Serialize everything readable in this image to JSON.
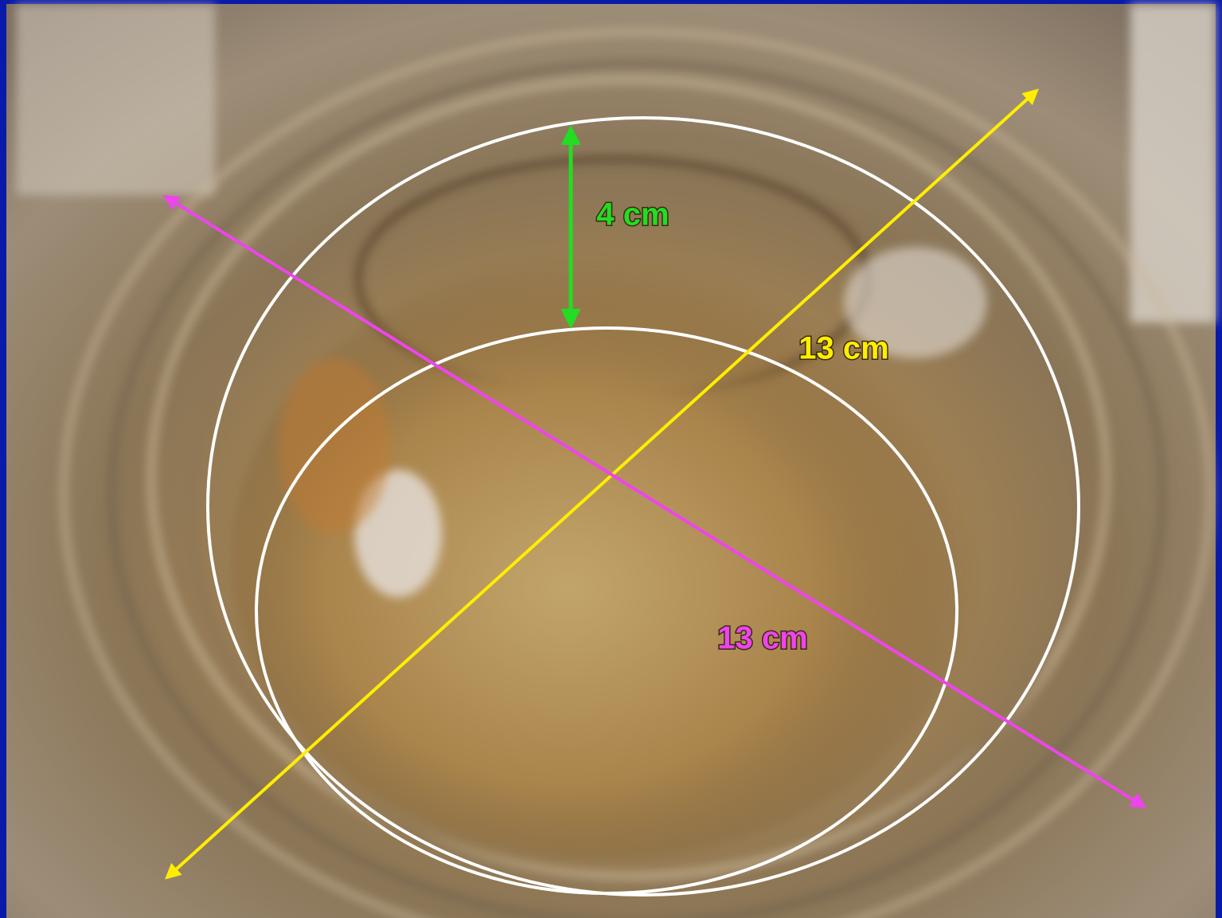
{
  "annotations": {
    "depth": "4 cm",
    "diameter_yellow": "13 cm",
    "diameter_magenta": "13 cm"
  }
}
